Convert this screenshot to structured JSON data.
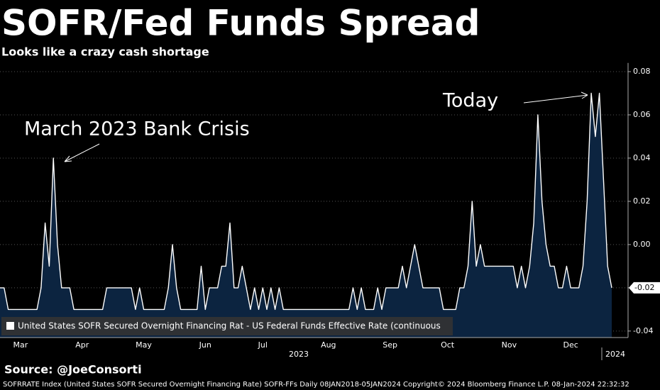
{
  "chart_data": {
    "type": "area",
    "title": "SOFR/Fed Funds Spread",
    "subtitle": "Looks like a crazy cash shortage",
    "source": "Source: @JoeConsorti",
    "footer": "SOFRRATE Index (United States SOFR Secured Overnight Financing Rate) SOFR-FFs  Daily 08JAN2018-05JAN2024  Copyright© 2024 Bloomberg Finance L.P.   08-Jan-2024 22:32:32",
    "annotations": [
      "March 2023 Bank Crisis",
      "Today"
    ],
    "year_labels": [
      "2023",
      "2024"
    ],
    "categories": [
      null,
      null,
      null,
      null,
      null,
      "Mar",
      null,
      null,
      null,
      null,
      null,
      null,
      null,
      null,
      null,
      null,
      null,
      null,
      null,
      null,
      "Apr",
      null,
      null,
      null,
      null,
      null,
      null,
      null,
      null,
      null,
      null,
      null,
      null,
      null,
      null,
      "May",
      null,
      null,
      null,
      null,
      null,
      null,
      null,
      null,
      null,
      null,
      null,
      null,
      null,
      null,
      "Jun",
      null,
      null,
      null,
      null,
      null,
      null,
      null,
      null,
      null,
      null,
      null,
      null,
      null,
      "Jul",
      null,
      null,
      null,
      null,
      null,
      null,
      null,
      null,
      null,
      null,
      null,
      null,
      null,
      null,
      null,
      "Aug",
      null,
      null,
      null,
      null,
      null,
      null,
      null,
      null,
      null,
      null,
      null,
      null,
      null,
      null,
      "Sep",
      null,
      null,
      null,
      null,
      null,
      null,
      null,
      null,
      null,
      null,
      null,
      null,
      null,
      "Oct",
      null,
      null,
      null,
      null,
      null,
      null,
      null,
      null,
      null,
      null,
      null,
      null,
      null,
      null,
      "Nov",
      null,
      null,
      null,
      null,
      null,
      null,
      null,
      null,
      null,
      null,
      null,
      null,
      null,
      null,
      "Dec",
      null,
      null,
      null,
      null,
      null,
      null,
      null,
      null,
      null,
      null
    ],
    "series": [
      {
        "name": "United States SOFR Secured Overnight Financing Rat - US Federal Funds Effective Rate (continuous",
        "color": "#ffffff",
        "fill": "#0c2440",
        "values": [
          -0.02,
          -0.02,
          -0.03,
          -0.03,
          -0.03,
          -0.03,
          -0.03,
          -0.03,
          -0.03,
          -0.03,
          -0.02,
          0.01,
          -0.01,
          0.04,
          0,
          -0.02,
          -0.02,
          -0.02,
          -0.03,
          -0.03,
          -0.03,
          -0.03,
          -0.03,
          -0.03,
          -0.03,
          -0.03,
          -0.02,
          -0.02,
          -0.02,
          -0.02,
          -0.02,
          -0.02,
          -0.02,
          -0.03,
          -0.02,
          -0.03,
          -0.03,
          -0.03,
          -0.03,
          -0.03,
          -0.03,
          -0.02,
          0,
          -0.02,
          -0.03,
          -0.03,
          -0.03,
          -0.03,
          -0.03,
          -0.01,
          -0.03,
          -0.02,
          -0.02,
          -0.02,
          -0.01,
          -0.01,
          0.01,
          -0.02,
          -0.02,
          -0.01,
          -0.02,
          -0.03,
          -0.02,
          -0.03,
          -0.02,
          -0.03,
          -0.02,
          -0.03,
          -0.02,
          -0.03,
          -0.03,
          -0.03,
          -0.03,
          -0.03,
          -0.03,
          -0.03,
          -0.03,
          -0.03,
          -0.03,
          -0.03,
          -0.03,
          -0.03,
          -0.03,
          -0.03,
          -0.03,
          -0.03,
          -0.02,
          -0.03,
          -0.02,
          -0.03,
          -0.03,
          -0.03,
          -0.02,
          -0.03,
          -0.02,
          -0.02,
          -0.02,
          -0.02,
          -0.01,
          -0.02,
          -0.01,
          0,
          -0.01,
          -0.02,
          -0.02,
          -0.02,
          -0.02,
          -0.02,
          -0.03,
          -0.03,
          -0.03,
          -0.03,
          -0.02,
          -0.02,
          -0.01,
          0.02,
          -0.01,
          0,
          -0.01,
          -0.01,
          -0.01,
          -0.01,
          -0.01,
          -0.01,
          -0.01,
          -0.01,
          -0.02,
          -0.01,
          -0.02,
          -0.01,
          0.01,
          0.06,
          0.02,
          0,
          -0.01,
          -0.01,
          -0.02,
          -0.02,
          -0.01,
          -0.02,
          -0.02,
          -0.02,
          -0.01,
          0.02,
          0.07,
          0.05,
          0.07,
          0.03,
          -0.01,
          -0.02
        ]
      }
    ],
    "ylim": [
      -0.043,
      0.084
    ],
    "yticks": [
      0.08,
      0.06,
      0.04,
      0.02,
      {
        "value": 0,
        "label": "0.00"
      },
      -0.02,
      -0.04
    ],
    "grid": true,
    "legend": "bottom-left"
  }
}
